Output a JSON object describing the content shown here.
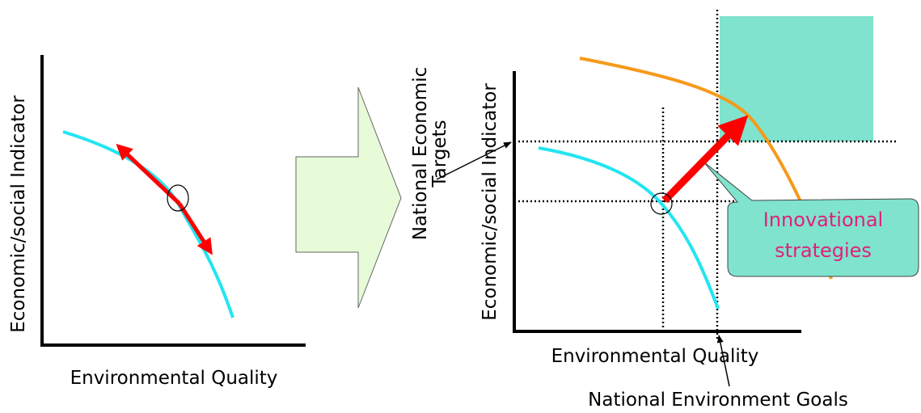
{
  "left_panel": {
    "y_axis_label": "Economic/social Indicator",
    "x_axis_label": "Environmental Quality"
  },
  "right_panel": {
    "y_axis_label": "Economic/social Indicator",
    "x_axis_label": "Environmental Quality",
    "target_label_line1": "National Economic",
    "target_label_line2": "Targets",
    "goal_label": "National Environment Goals",
    "callout_line1": "Innovational",
    "callout_line2": "strategies"
  },
  "colors": {
    "baseline_curve": "#22E5F0",
    "improved_curve": "#F59A1A",
    "arrow": "#FF0000",
    "target_zone": "#7FE3CD",
    "callout_fill": "#7FE3CD",
    "callout_text": "#E0207A",
    "block_arrow_fill": "#E8FBD8"
  }
}
